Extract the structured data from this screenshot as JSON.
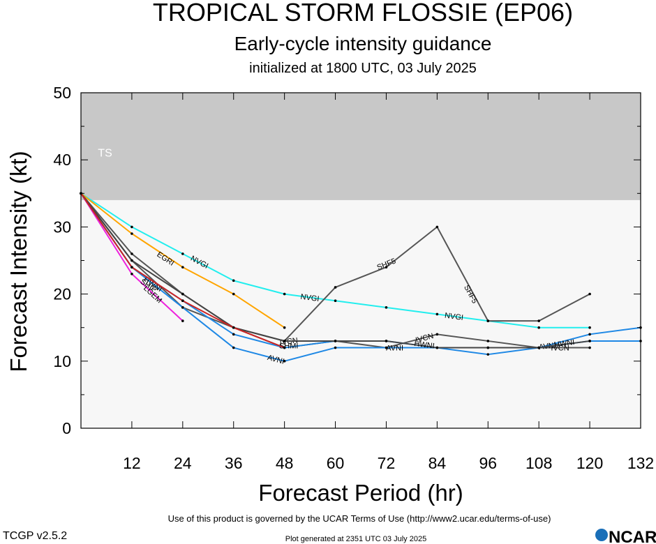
{
  "header": {
    "title": "TROPICAL STORM FLOSSIE (EP06)",
    "subtitle": "Early-cycle intensity guidance",
    "init": "initialized at 1800 UTC, 03 July 2025"
  },
  "footer": {
    "terms": "Use of this product is governed by the UCAR Terms of Use (http://www2.ucar.edu/terms-of-use)",
    "generated": "Plot generated at 2351 UTC   03 July 2025",
    "version": "TCGP v2.5.2",
    "logo": "NCAR"
  },
  "chart_data": {
    "type": "line",
    "xlabel": "Forecast Period (hr)",
    "ylabel": "Forecast Intensity (kt)",
    "xlim": [
      0,
      132
    ],
    "ylim": [
      0,
      50
    ],
    "xticks": [
      12,
      24,
      36,
      48,
      60,
      72,
      84,
      96,
      108,
      120,
      132
    ],
    "yticks": [
      0,
      10,
      20,
      30,
      40,
      50
    ],
    "band": {
      "label": "TS",
      "from": 34,
      "to": 50,
      "color": "#c8c8c8"
    },
    "plot_bg": "#f7f7f7",
    "series": [
      {
        "name": "NVGI",
        "color": "#22eeee",
        "points": [
          [
            0,
            35
          ],
          [
            12,
            30
          ],
          [
            24,
            26
          ],
          [
            36,
            22
          ],
          [
            48,
            20
          ],
          [
            60,
            19
          ],
          [
            72,
            18
          ],
          [
            84,
            17
          ],
          [
            96,
            16
          ],
          [
            108,
            15
          ],
          [
            120,
            15
          ]
        ],
        "labels": [
          [
            28,
            24.8
          ],
          [
            54,
            19.5
          ],
          [
            88,
            16.7
          ]
        ]
      },
      {
        "name": "EGRI",
        "color": "#ffa500",
        "points": [
          [
            0,
            35
          ],
          [
            12,
            29
          ],
          [
            24,
            24
          ],
          [
            36,
            20
          ],
          [
            48,
            15
          ]
        ],
        "labels": [
          [
            20,
            25.3
          ]
        ]
      },
      {
        "name": "SHF5",
        "color": "#555555",
        "points": [
          [
            0,
            35
          ],
          [
            12,
            26
          ],
          [
            24,
            20
          ],
          [
            36,
            15
          ],
          [
            48,
            13
          ],
          [
            60,
            21
          ],
          [
            72,
            24
          ],
          [
            84,
            30
          ],
          [
            96,
            16
          ],
          [
            108,
            16
          ],
          [
            120,
            20
          ]
        ],
        "labels": [
          [
            72,
            24.5
          ],
          [
            92,
            20
          ]
        ]
      },
      {
        "name": "IVCN",
        "color": "#555555",
        "points": [
          [
            0,
            35
          ],
          [
            12,
            25
          ],
          [
            24,
            18
          ],
          [
            36,
            15
          ],
          [
            48,
            12
          ],
          [
            60,
            13
          ],
          [
            72,
            12
          ],
          [
            84,
            14
          ],
          [
            96,
            13
          ],
          [
            108,
            12
          ],
          [
            120,
            12
          ]
        ],
        "labels": [
          [
            49,
            13
          ],
          [
            81,
            13.5
          ],
          [
            113,
            12
          ]
        ]
      },
      {
        "name": "LGEM",
        "color": "#ee22dd",
        "points": [
          [
            0,
            35
          ],
          [
            12,
            23
          ],
          [
            24,
            16
          ]
        ],
        "labels": [
          [
            17,
            20
          ]
        ]
      },
      {
        "name": "SHIP",
        "color": "#1e88e5",
        "points": [
          [
            0,
            35
          ],
          [
            12,
            24
          ],
          [
            24,
            19
          ],
          [
            36,
            14
          ],
          [
            48,
            12
          ],
          [
            60,
            13
          ],
          [
            72,
            13
          ],
          [
            84,
            12
          ],
          [
            96,
            12
          ],
          [
            108,
            12
          ],
          [
            120,
            14
          ],
          [
            132,
            15
          ]
        ],
        "labels": [
          [
            16,
            21.3
          ]
        ]
      },
      {
        "name": "AVNI",
        "color": "#1e88e5",
        "points": [
          [
            0,
            35
          ],
          [
            12,
            24
          ],
          [
            24,
            18
          ],
          [
            36,
            12
          ],
          [
            48,
            10
          ],
          [
            60,
            12
          ],
          [
            72,
            12
          ],
          [
            84,
            12
          ],
          [
            96,
            11
          ],
          [
            108,
            12
          ],
          [
            120,
            13
          ],
          [
            132,
            13
          ]
        ],
        "labels": [
          [
            46,
            10.3
          ],
          [
            74,
            12
          ],
          [
            110,
            12.3
          ]
        ]
      },
      {
        "name": "HWNI",
        "color": "#444444",
        "points": [
          [
            0,
            35
          ],
          [
            12,
            25
          ],
          [
            24,
            20
          ],
          [
            36,
            15
          ],
          [
            48,
            13
          ],
          [
            60,
            13
          ],
          [
            72,
            13
          ],
          [
            84,
            12
          ],
          [
            96,
            12
          ],
          [
            108,
            12
          ],
          [
            120,
            13
          ]
        ],
        "labels": [
          [
            17,
            21.5
          ],
          [
            81,
            12.5
          ],
          [
            114,
            12.7
          ]
        ]
      },
      {
        "name": "SHMI",
        "color": "#cc2222",
        "points": [
          [
            0,
            35
          ],
          [
            12,
            24
          ],
          [
            24,
            19
          ],
          [
            36,
            15
          ],
          [
            48,
            12
          ]
        ],
        "labels": [
          [
            49,
            12.3
          ]
        ]
      }
    ]
  }
}
